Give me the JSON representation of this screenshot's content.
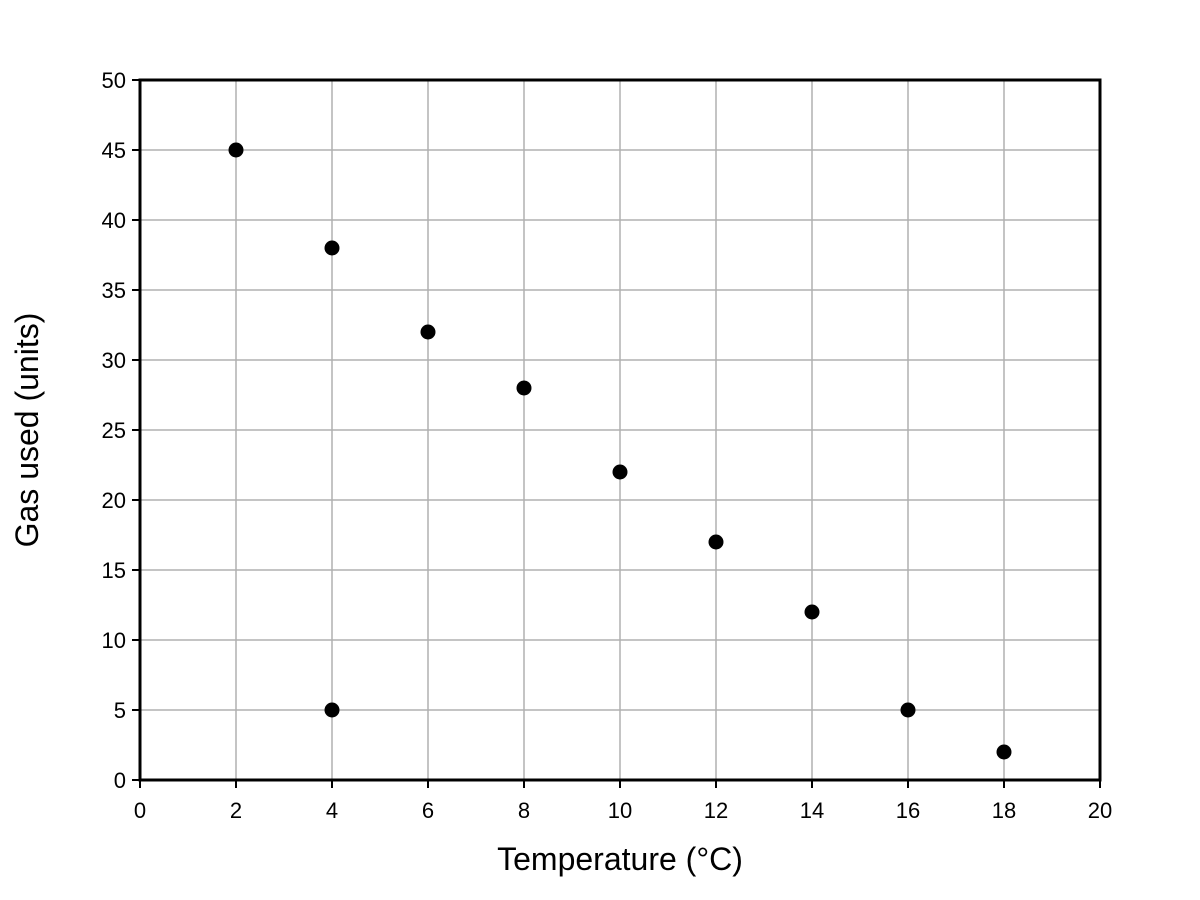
{
  "chart_data": {
    "type": "scatter",
    "title": "",
    "xlabel": "Temperature (°C)",
    "ylabel": "Gas used (units)",
    "xlim": [
      0,
      20
    ],
    "ylim": [
      0,
      50
    ],
    "x_ticks": [
      0,
      2,
      4,
      6,
      8,
      10,
      12,
      14,
      16,
      18,
      20
    ],
    "y_ticks": [
      0,
      5,
      10,
      15,
      20,
      25,
      30,
      35,
      40,
      45,
      50
    ],
    "grid": true,
    "legend": "none",
    "marker_color": "#000000",
    "points": [
      {
        "x": 2,
        "y": 45
      },
      {
        "x": 4,
        "y": 38
      },
      {
        "x": 4,
        "y": 5
      },
      {
        "x": 6,
        "y": 32
      },
      {
        "x": 8,
        "y": 28
      },
      {
        "x": 10,
        "y": 22
      },
      {
        "x": 12,
        "y": 17
      },
      {
        "x": 14,
        "y": 12
      },
      {
        "x": 16,
        "y": 5
      },
      {
        "x": 18,
        "y": 2
      }
    ]
  }
}
